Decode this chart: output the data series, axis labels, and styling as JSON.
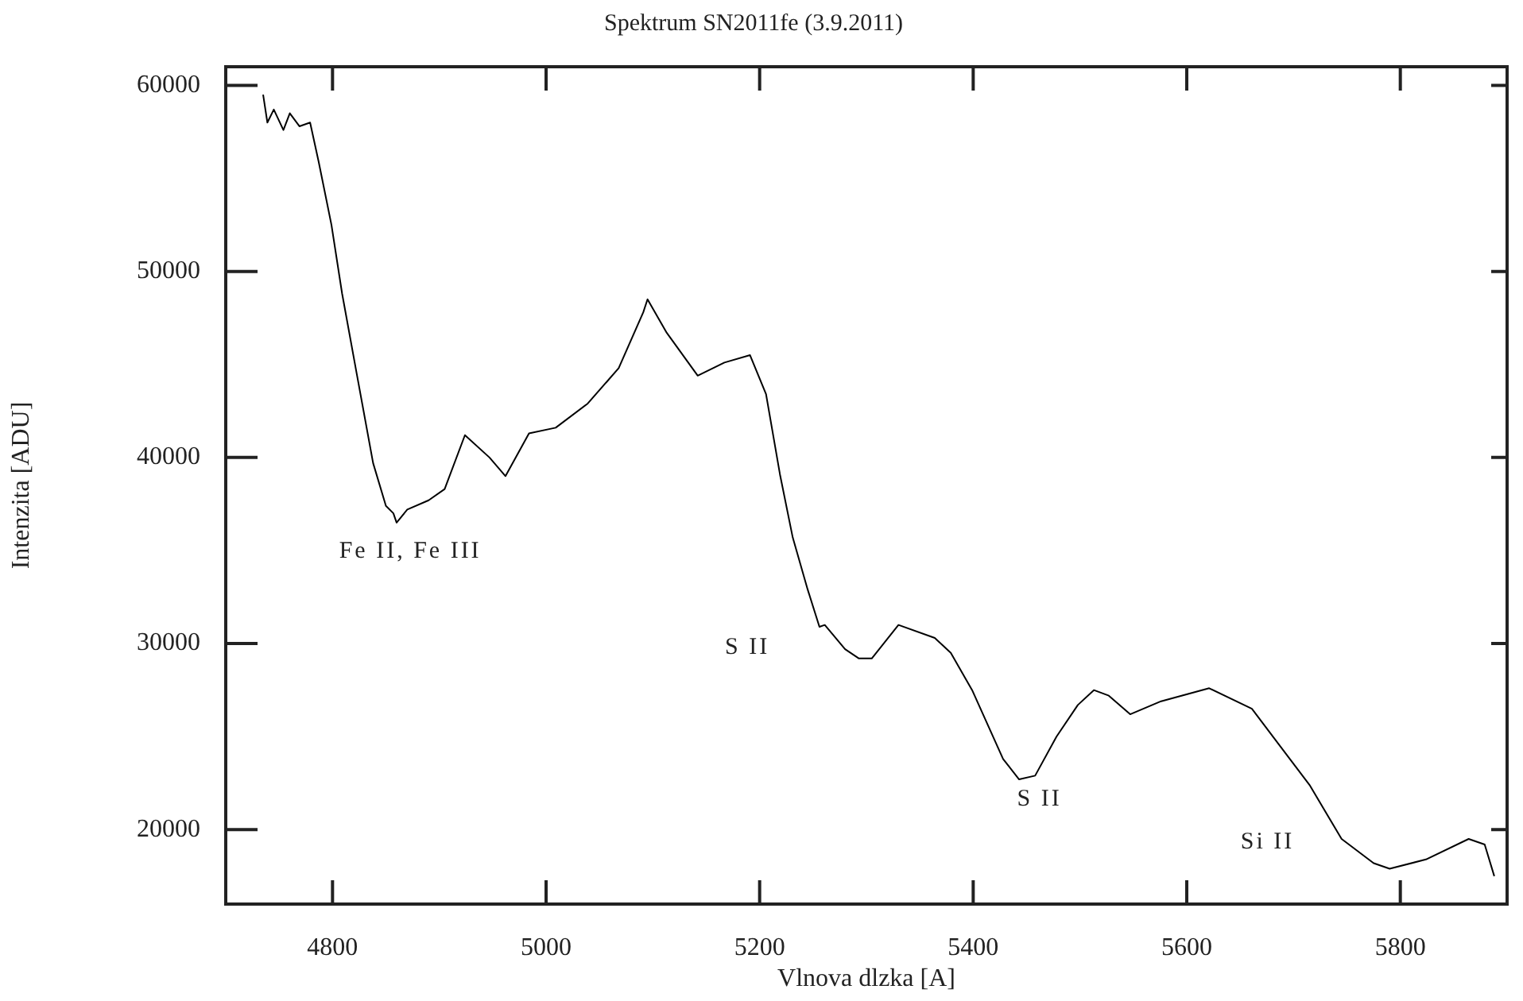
{
  "chart_data": {
    "type": "line",
    "title": "Spektrum SN2011fe (3.9.2011)",
    "xlabel": "Vlnova dlzka [A]",
    "ylabel": "Intenzita [ADU]",
    "xlim": [
      4700,
      5900
    ],
    "xticks": [
      4800,
      5000,
      5200,
      5400,
      5600,
      5800
    ],
    "ylim": [
      16000,
      61000
    ],
    "yticks": [
      20000,
      30000,
      40000,
      50000,
      60000
    ],
    "grid": false,
    "legend": false,
    "marker": "none",
    "line_style": "solid",
    "annotations": [
      "Fe II, Fe III",
      "S II",
      "S II",
      "Si II"
    ],
    "series": [
      {
        "color": "#000000",
        "x": [
          4735,
          4739,
          4745,
          4754,
          4760,
          4769,
          4779,
          4787,
          4799,
          4809,
          4823,
          4838,
          4850,
          4857,
          4860,
          4870,
          4890,
          4905,
          4924,
          4947,
          4962,
          4984,
          5009,
          5039,
          5068,
          5091,
          5095,
          5113,
          5142,
          5167,
          5191,
          5206,
          5219,
          5231,
          5245,
          5256,
          5261,
          5280,
          5293,
          5305,
          5330,
          5364,
          5379,
          5399,
          5428,
          5443,
          5458,
          5478,
          5498,
          5513,
          5527,
          5547,
          5576,
          5621,
          5661,
          5686,
          5715,
          5745,
          5775,
          5790,
          5824,
          5864,
          5879,
          5888
        ],
        "values": [
          59500,
          58000,
          58700,
          57600,
          58500,
          57800,
          58000,
          55900,
          52500,
          48800,
          44400,
          39700,
          37400,
          37000,
          36500,
          37200,
          37700,
          38300,
          41200,
          40000,
          39000,
          41300,
          41600,
          42900,
          44800,
          47800,
          48500,
          46700,
          44400,
          45100,
          45500,
          43400,
          39100,
          35700,
          32900,
          30900,
          31000,
          29700,
          29200,
          29200,
          31000,
          30300,
          29500,
          27500,
          23800,
          22700,
          22900,
          25000,
          26700,
          27500,
          27200,
          26200,
          26900,
          27600,
          26500,
          24600,
          22400,
          19500,
          18200,
          17900,
          18400,
          19500,
          19200,
          17500
        ]
      }
    ]
  }
}
